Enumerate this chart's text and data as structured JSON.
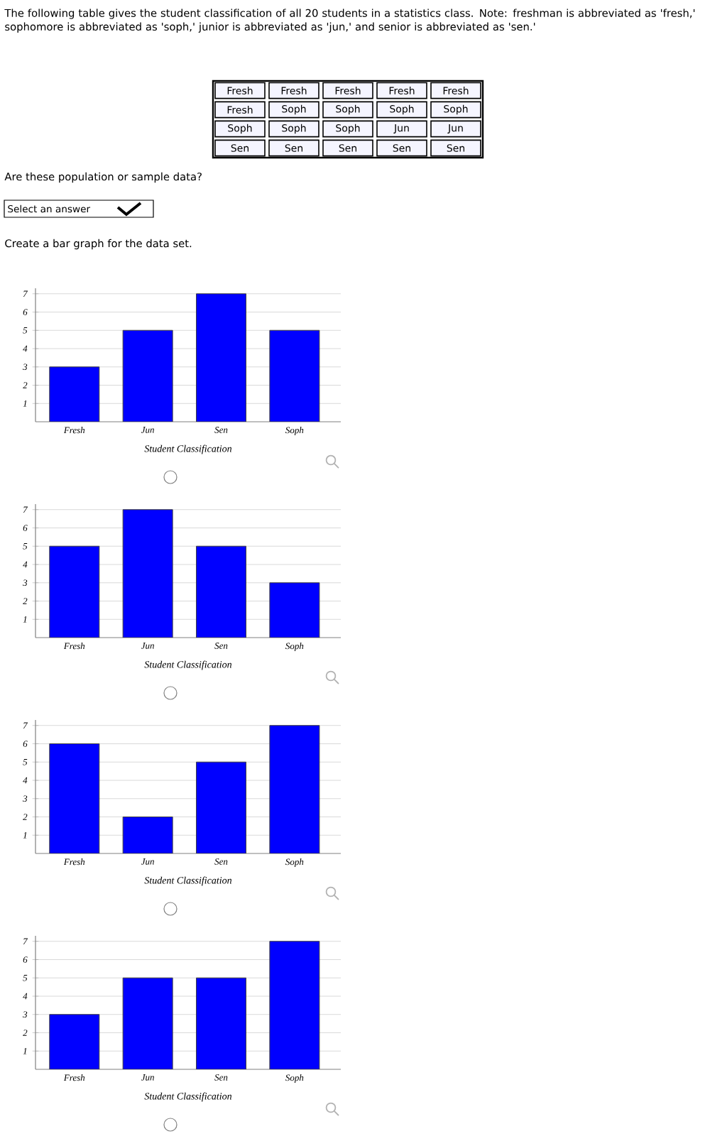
{
  "chart_data": [
    {
      "type": "other",
      "title": "The following table gives the student classification of all 20 students in a statistics class. Note: freshman is abbreviated as 'fresh,' sophomore is abbreviated as 'soph,' junior is abbreviated as 'jun,' and senior is abbreviated as 'sen.'",
      "annotations": [
        "Fresh",
        "Fresh",
        "Fresh",
        "Fresh",
        "Fresh",
        "Fresh",
        "Soph",
        "Soph",
        "Soph",
        "Soph",
        "Soph",
        "Soph",
        "Soph",
        "Jun",
        "Jun",
        "Sen",
        "Sen",
        "Sen",
        "Sen",
        "Sen",
        "Are these population or sample data?",
        "Select an answer",
        "Create a bar graph for the data set."
      ]
    },
    {
      "type": "bar",
      "categories": [
        "Fresh",
        "Jun",
        "Sen",
        "Soph"
      ],
      "values": [
        3,
        5,
        7,
        5
      ],
      "color": "#0000ff",
      "xlabel": "Student Classification",
      "ylim": [
        0,
        7.3
      ],
      "yticks": [
        1,
        2,
        3,
        4,
        5,
        6,
        7
      ],
      "grid": "y"
    },
    {
      "type": "bar",
      "categories": [
        "Fresh",
        "Jun",
        "Sen",
        "Soph"
      ],
      "values": [
        5,
        7,
        5,
        3
      ],
      "color": "#0000ff",
      "xlabel": "Student Classification",
      "ylim": [
        0,
        7.3
      ],
      "yticks": [
        1,
        2,
        3,
        4,
        5,
        6,
        7
      ],
      "grid": "y"
    },
    {
      "type": "bar",
      "categories": [
        "Fresh",
        "Jun",
        "Sen",
        "Soph"
      ],
      "values": [
        6,
        2,
        5,
        7
      ],
      "color": "#0000ff",
      "xlabel": "Student Classification",
      "ylim": [
        0,
        7.3
      ],
      "yticks": [
        1,
        2,
        3,
        4,
        5,
        6,
        7
      ],
      "grid": "y"
    },
    {
      "type": "bar",
      "categories": [
        "Fresh",
        "Jun",
        "Sen",
        "Soph"
      ],
      "values": [
        3,
        5,
        5,
        7
      ],
      "color": "#0000ff",
      "xlabel": "Student Classification",
      "ylim": [
        0,
        7.3
      ],
      "yticks": [
        1,
        2,
        3,
        4,
        5,
        6,
        7
      ],
      "grid": "y"
    }
  ]
}
